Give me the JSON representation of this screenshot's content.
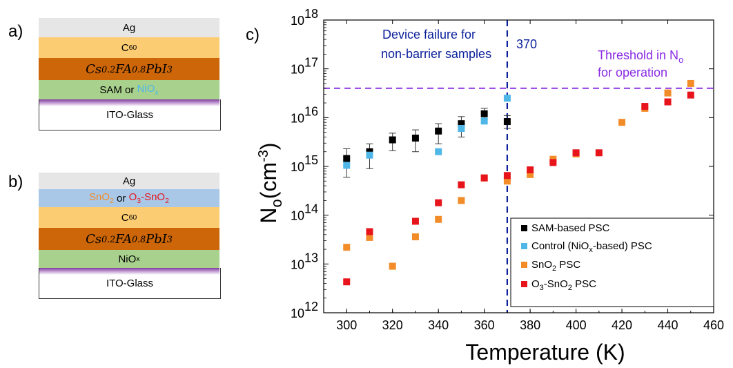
{
  "panel_a": {
    "letter": "a)",
    "layers": [
      {
        "label": "Ag",
        "color": "#e6e6e6"
      },
      {
        "label": "C",
        "sub": "60",
        "color": "#fccc72"
      },
      {
        "label": "Cs",
        "sub1": "0.2",
        "mid": "FA",
        "sub2": "0.8",
        "end": "PbI",
        "sub3": "3",
        "color": "#cc6609"
      },
      {
        "label": "SAM or ",
        "accent": "NiO",
        "accent_sub": "x",
        "accent_color": "#4fb7e8",
        "color": "#a9d18e"
      },
      {
        "label": "ITO-Glass",
        "color": "#ffffff"
      }
    ]
  },
  "panel_b": {
    "letter": "b)",
    "layers": [
      {
        "label": "Ag",
        "color": "#e6e6e6"
      },
      {
        "orange": "SnO",
        "orange_sub": "2",
        "mid": " or ",
        "red": "O",
        "red_sub1": "3",
        "red_rest": "-SnO",
        "red_sub2": "2",
        "color": "#a9c8e8"
      },
      {
        "label": "C",
        "sub": "60",
        "color": "#fccc72"
      },
      {
        "label": "Cs",
        "sub1": "0.2",
        "mid": "FA",
        "sub2": "0.8",
        "end": "PbI",
        "sub3": "3",
        "color": "#cc6609"
      },
      {
        "label": "NiO",
        "sub": "x",
        "color": "#a9d18e"
      },
      {
        "label": "ITO-Glass",
        "color": "#ffffff"
      }
    ]
  },
  "chart_data": {
    "panel_letter": "c)",
    "type": "scatter",
    "xlabel": "Temperature (K)",
    "ylabel_main": "N",
    "ylabel_sub": "o",
    "ylabel_unit": "(cm",
    "ylabel_sup": "-3",
    "ylabel_close": ")",
    "xlim": [
      290,
      460
    ],
    "ylim_log10": [
      12,
      18
    ],
    "yscale": "log",
    "x_ticks": [
      300,
      320,
      340,
      360,
      380,
      400,
      420,
      440,
      460
    ],
    "y_ticks_exp": [
      12,
      13,
      14,
      15,
      16,
      17,
      18
    ],
    "y_tick_base": "10",
    "vline": {
      "x": 370,
      "label": "370",
      "color": "#0a1f9a"
    },
    "hline": {
      "y": 4e+16,
      "color": "#8a2be2"
    },
    "annotations": [
      {
        "id": "device_failure",
        "lines": [
          "Device failure for",
          "non-barrier samples"
        ],
        "color": "#0a1f9a"
      },
      {
        "id": "threshold",
        "line1": "Threshold in N",
        "line1_sub": "o",
        "line2": "for operation",
        "color": "#8a2be2"
      }
    ],
    "legend_position": "bottom-right",
    "series": [
      {
        "name": "SAM-based PSC",
        "color": "#000000",
        "points": [
          [
            300,
            1450000000000000.0
          ],
          [
            310,
            2000000000000000.0
          ],
          [
            320,
            3500000000000000.0
          ],
          [
            330,
            3800000000000000.0
          ],
          [
            340,
            5300000000000000.0
          ],
          [
            350,
            7500000000000000.0
          ],
          [
            360,
            1.2e+16
          ],
          [
            370,
            8300000000000000.0
          ]
        ],
        "errors": [
          [
            600000000000000.0,
            2300000000000000.0
          ],
          [
            900000000000000.0,
            2900000000000000.0
          ],
          [
            2100000000000000.0,
            4800000000000000.0
          ],
          [
            2000000000000000.0,
            5600000000000000.0
          ],
          [
            2900000000000000.0,
            7500000000000000.0
          ],
          [
            4000000000000000.0,
            1.05e+16
          ],
          [
            9000000000000000.0,
            1.55e+16
          ],
          [
            6000000000000000.0,
            1.1e+16
          ]
        ]
      },
      {
        "name_pre": "Control (NiO",
        "name_sub": "x",
        "name_post": "-based) PSC",
        "color": "#4fb7e8",
        "points": [
          [
            300,
            1050000000000000.0
          ],
          [
            310,
            1700000000000000.0
          ],
          [
            340,
            2000000000000000.0
          ],
          [
            350,
            6000000000000000.0
          ],
          [
            360,
            8500000000000000.0
          ],
          [
            370,
            2.5e+16
          ]
        ]
      },
      {
        "name_pre": "SnO",
        "name_sub": "2",
        "name_post": " PSC",
        "color": "#f28c28",
        "points": [
          [
            300,
            22000000000000.0
          ],
          [
            310,
            35000000000000.0
          ],
          [
            320,
            9000000000000.0
          ],
          [
            330,
            36000000000000.0
          ],
          [
            340,
            82000000000000.0
          ],
          [
            350,
            200000000000000.0
          ],
          [
            360,
            580000000000000.0
          ],
          [
            370,
            500000000000000.0
          ],
          [
            380,
            680000000000000.0
          ],
          [
            390,
            1400000000000000.0
          ],
          [
            400,
            1800000000000000.0
          ],
          [
            420,
            8000000000000000.0
          ],
          [
            430,
            1.55e+16
          ],
          [
            440,
            3.2e+16
          ],
          [
            450,
            5e+16
          ]
        ]
      },
      {
        "name_pre": "O",
        "name_sub": "3",
        "name_post": "-SnO",
        "name_sub2": "2",
        "name_post2": " PSC",
        "color": "#e8141c",
        "points": [
          [
            300,
            4300000000000.0
          ],
          [
            310,
            46000000000000.0
          ],
          [
            330,
            75000000000000.0
          ],
          [
            340,
            180000000000000.0
          ],
          [
            350,
            420000000000000.0
          ],
          [
            360,
            580000000000000.0
          ],
          [
            370,
            650000000000000.0
          ],
          [
            380,
            850000000000000.0
          ],
          [
            390,
            1200000000000000.0
          ],
          [
            400,
            1900000000000000.0
          ],
          [
            410,
            1900000000000000.0
          ],
          [
            430,
            1.7e+16
          ],
          [
            440,
            2.1e+16
          ],
          [
            450,
            2.9e+16
          ]
        ]
      }
    ]
  }
}
